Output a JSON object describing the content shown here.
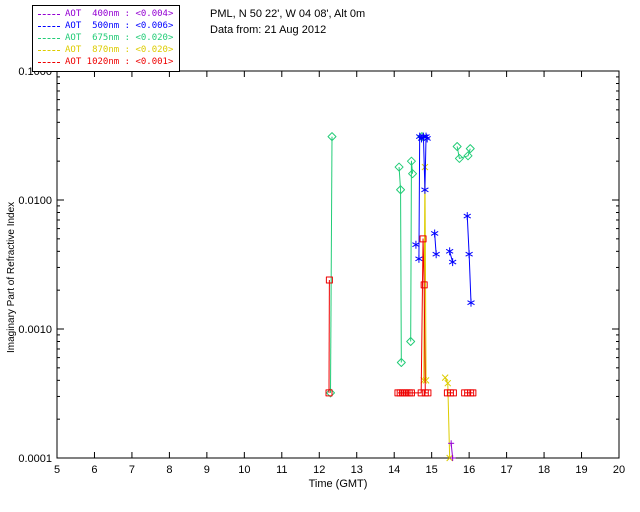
{
  "header": {
    "line1": "PML, N 50 22', W 04 08', Alt 0m",
    "line2": "Data from: 21 Aug 2012"
  },
  "legend": {
    "items": [
      {
        "label": "AOT  400nm : <0.004>",
        "color": "#9400d3"
      },
      {
        "label": "AOT  500nm : <0.006>",
        "color": "#0000ff"
      },
      {
        "label": "AOT  675nm : <0.020>",
        "color": "#22cc77"
      },
      {
        "label": "AOT  870nm : <0.020>",
        "color": "#ddcc00"
      },
      {
        "label": "AOT 1020nm : <0.001>",
        "color": "#ee0000"
      }
    ]
  },
  "chart_data": {
    "type": "line",
    "title": "",
    "xlabel": "Time (GMT)",
    "ylabel": "Imaginary Part of Refractive Index",
    "xlim": [
      5,
      20
    ],
    "xticks": [
      5,
      6,
      7,
      8,
      9,
      10,
      11,
      12,
      13,
      14,
      15,
      16,
      17,
      18,
      19,
      20
    ],
    "ylog": true,
    "ylim": [
      0.0001,
      0.1
    ],
    "yticks": [
      0.0001,
      0.001,
      0.01,
      0.1
    ],
    "ytick_labels": [
      "0.0001",
      "0.0010",
      "0.0100",
      "0.1000"
    ],
    "grid": false,
    "legend_position": "top-left",
    "series": [
      {
        "name": "AOT 400nm",
        "color": "#9400d3",
        "marker": "plus",
        "segments": [
          [
            [
              15.52,
              0.00013
            ],
            [
              15.56,
              0.0001
            ]
          ]
        ]
      },
      {
        "name": "AOT 500nm",
        "color": "#0000ff",
        "marker": "asterisk",
        "segments": [
          [
            [
              14.58,
              0.0045
            ]
          ],
          [
            [
              14.66,
              0.0035
            ],
            [
              14.68,
              0.031
            ],
            [
              14.73,
              0.03
            ],
            [
              14.78,
              0.031
            ],
            [
              14.82,
              0.012
            ],
            [
              14.85,
              0.031
            ],
            [
              14.88,
              0.03
            ]
          ],
          [
            [
              15.08,
              0.0055
            ],
            [
              15.12,
              0.0038
            ]
          ],
          [
            [
              15.48,
              0.004
            ],
            [
              15.56,
              0.0033
            ]
          ],
          [
            [
              15.95,
              0.0075
            ],
            [
              16.0,
              0.0038
            ],
            [
              16.05,
              0.0016
            ]
          ]
        ]
      },
      {
        "name": "AOT 675nm",
        "color": "#22cc77",
        "marker": "diamond",
        "segments": [
          [
            [
              12.3,
              0.00032
            ],
            [
              12.34,
              0.031
            ]
          ],
          [
            [
              14.13,
              0.018
            ],
            [
              14.17,
              0.012
            ],
            [
              14.19,
              0.00055
            ]
          ],
          [
            [
              14.44,
              0.0008
            ],
            [
              14.46,
              0.02
            ],
            [
              14.49,
              0.016
            ]
          ],
          [
            [
              14.74,
              0.031
            ]
          ],
          [
            [
              15.68,
              0.026
            ],
            [
              15.74,
              0.021
            ],
            [
              15.97,
              0.022
            ],
            [
              16.03,
              0.025
            ]
          ]
        ]
      },
      {
        "name": "AOT 870nm",
        "color": "#ddcc00",
        "marker": "x",
        "segments": [
          [
            [
              14.79,
              0.0004
            ],
            [
              14.82,
              0.018
            ],
            [
              14.85,
              0.0004
            ]
          ],
          [
            [
              15.36,
              0.00042
            ],
            [
              15.43,
              0.00038
            ],
            [
              15.48,
              0.0001
            ]
          ]
        ]
      },
      {
        "name": "AOT 1020nm",
        "color": "#ee0000",
        "marker": "square",
        "segments": [
          [
            [
              12.26,
              0.00032
            ],
            [
              12.27,
              0.0024
            ]
          ],
          [
            [
              14.1,
              0.00032
            ],
            [
              14.16,
              0.00032
            ],
            [
              14.22,
              0.00032
            ],
            [
              14.28,
              0.00032
            ],
            [
              14.34,
              0.00032
            ],
            [
              14.4,
              0.00032
            ],
            [
              14.46,
              0.00032
            ],
            [
              14.72,
              0.00032
            ],
            [
              14.77,
              0.005
            ],
            [
              14.8,
              0.0022
            ],
            [
              14.83,
              0.00032
            ],
            [
              14.9,
              0.00032
            ]
          ],
          [
            [
              15.42,
              0.00032
            ],
            [
              15.5,
              0.00032
            ],
            [
              15.58,
              0.00032
            ]
          ],
          [
            [
              15.88,
              0.00032
            ],
            [
              15.96,
              0.00032
            ],
            [
              16.04,
              0.00032
            ],
            [
              16.1,
              0.00032
            ]
          ]
        ]
      }
    ]
  }
}
